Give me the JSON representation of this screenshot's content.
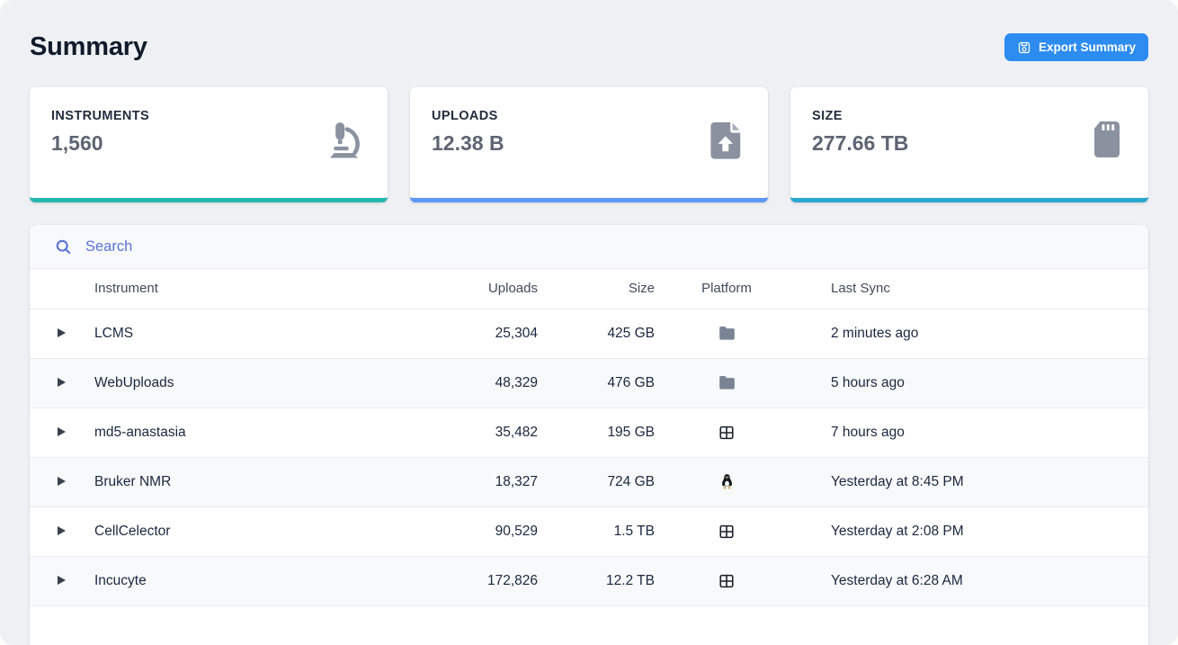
{
  "page": {
    "title": "Summary"
  },
  "header": {
    "export_button": {
      "label": "Export Summary",
      "color": "#2d8cf0"
    }
  },
  "stats": [
    {
      "label": "INSTRUMENTS",
      "value": "1,560",
      "icon": "microscope-icon",
      "accent": "#26b7ae"
    },
    {
      "label": "UPLOADS",
      "value": "12.38 B",
      "icon": "file-upload-icon",
      "accent": "#5d97f5"
    },
    {
      "label": "SIZE",
      "value": "277.66 TB",
      "icon": "sd-card-icon",
      "accent": "#2aa7ce"
    }
  ],
  "search": {
    "placeholder": "Search",
    "icon": "search-icon",
    "accent_color": "#5b74d9"
  },
  "table": {
    "columns": [
      "Instrument",
      "Uploads",
      "Size",
      "Platform",
      "Last Sync"
    ],
    "rows": [
      {
        "instrument": "LCMS",
        "uploads": "25,304",
        "size": "425 GB",
        "platform": "folder",
        "last_sync": "2 minutes ago"
      },
      {
        "instrument": "WebUploads",
        "uploads": "48,329",
        "size": "476 GB",
        "platform": "folder",
        "last_sync": "5 hours ago"
      },
      {
        "instrument": "md5-anastasia",
        "uploads": "35,482",
        "size": "195 GB",
        "platform": "windows",
        "last_sync": "7 hours ago"
      },
      {
        "instrument": "Bruker NMR",
        "uploads": "18,327",
        "size": "724 GB",
        "platform": "linux",
        "last_sync": "Yesterday at 8:45 PM"
      },
      {
        "instrument": "CellCelector",
        "uploads": "90,529",
        "size": "1.5 TB",
        "platform": "windows",
        "last_sync": "Yesterday at 2:08 PM"
      },
      {
        "instrument": "Incucyte",
        "uploads": "172,826",
        "size": "12.2 TB",
        "platform": "windows",
        "last_sync": "Yesterday at 6:28 AM"
      }
    ]
  }
}
